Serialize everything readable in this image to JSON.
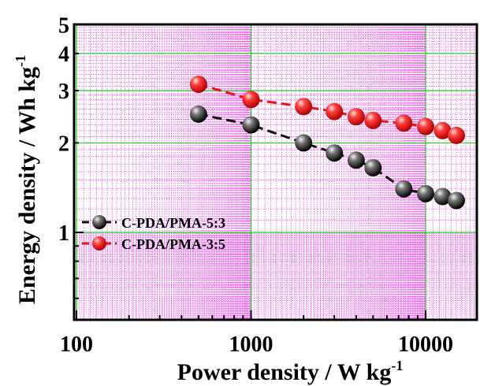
{
  "chart_data": {
    "type": "scatter",
    "xlabel": "Power density / W kg",
    "xlabel_sup": "-1",
    "ylabel": "Energy density / Wh kg",
    "ylabel_sup": "-1",
    "x_scale": "log",
    "y_scale": "log",
    "xlim": [
      100,
      20000
    ],
    "ylim": [
      0.4,
      5
    ],
    "x_ticks": [
      100,
      1000,
      10000
    ],
    "x_tick_labels": [
      "100",
      "1000",
      "10000"
    ],
    "y_ticks": [
      1,
      2,
      3,
      4,
      5
    ],
    "y_tick_labels": [
      "1",
      "2",
      "3",
      "4",
      "5"
    ],
    "grid": "on (major green, minor magenta dotted)",
    "legend_position": "center-left",
    "colors": {
      "major_grid": "#22cc22",
      "minor_grid": "#ee44ee",
      "series_1": "#111111",
      "series_2": "#ee1111"
    },
    "series": [
      {
        "name": "C-PDA/PMA-5:3",
        "color": "#111111",
        "x": [
          500,
          1000,
          2000,
          3000,
          4000,
          5000,
          7500,
          10000,
          12500,
          15000
        ],
        "y": [
          2.5,
          2.3,
          2.0,
          1.85,
          1.75,
          1.65,
          1.4,
          1.35,
          1.32,
          1.28
        ]
      },
      {
        "name": "C-PDA/PMA-3:5",
        "color": "#ee1111",
        "x": [
          500,
          1000,
          2000,
          3000,
          4000,
          5000,
          7500,
          10000,
          12500,
          15000
        ],
        "y": [
          3.15,
          2.8,
          2.65,
          2.55,
          2.45,
          2.38,
          2.33,
          2.27,
          2.2,
          2.12
        ]
      }
    ]
  }
}
